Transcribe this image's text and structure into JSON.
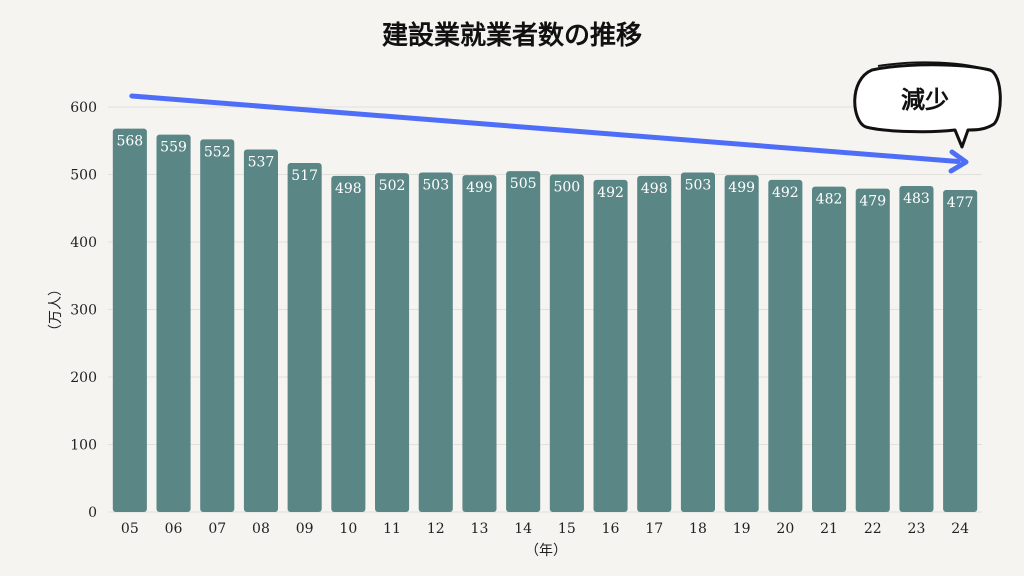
{
  "chart_data": {
    "type": "bar",
    "title": "建設業就業者数の推移",
    "xlabel": "（年）",
    "ylabel": "（万人）",
    "categories": [
      "05",
      "06",
      "07",
      "08",
      "09",
      "10",
      "11",
      "12",
      "13",
      "14",
      "15",
      "16",
      "17",
      "18",
      "19",
      "20",
      "21",
      "22",
      "23",
      "24"
    ],
    "values": [
      568,
      559,
      552,
      537,
      517,
      498,
      502,
      503,
      499,
      505,
      500,
      492,
      498,
      503,
      499,
      492,
      482,
      479,
      483,
      477
    ],
    "ylim": [
      0,
      600
    ],
    "yticks": [
      0,
      100,
      200,
      300,
      400,
      500,
      600
    ],
    "grid": true,
    "annotation": {
      "text": "減少"
    }
  },
  "colors": {
    "bar": "#5b8686",
    "arrow": "#4f6ef7",
    "grid": "#e2e0dc",
    "background": "#f5f4f1"
  }
}
